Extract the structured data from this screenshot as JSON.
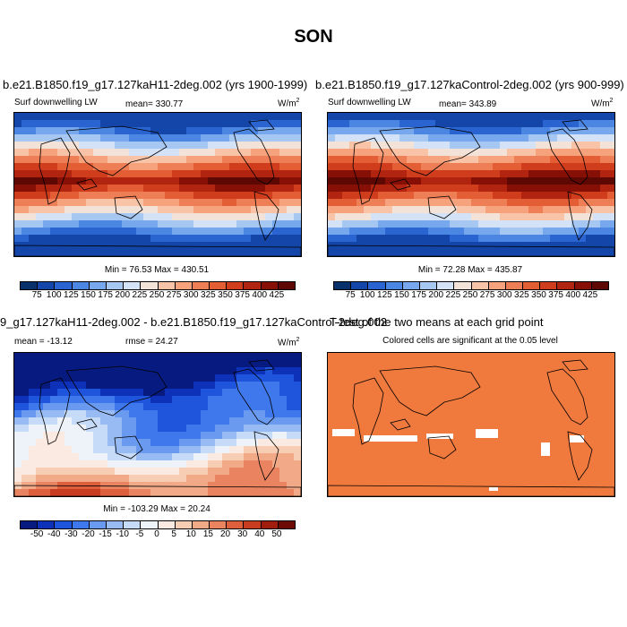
{
  "main_title": "SON",
  "panels": {
    "p1": {
      "title": "b.e21.B1850.f19_g17.127kaH11-2deg.002 (yrs 1900-1999)",
      "left_label": "Surf downwelling LW",
      "center_label": "mean= 330.77",
      "units": "W/m",
      "units_sup": "2",
      "minmax": "Min =  76.53 Max = 430.51",
      "ticks": [
        "75",
        "100",
        "125",
        "150",
        "175",
        "200",
        "225",
        "250",
        "275",
        "300",
        "325",
        "350",
        "375",
        "400",
        "425"
      ]
    },
    "p2": {
      "title": "b.e21.B1850.f19_g17.127kaControl-2deg.002 (yrs 900-999)",
      "left_label": "Surf downwelling LW",
      "center_label": "mean= 343.89",
      "units": "W/m",
      "units_sup": "2",
      "minmax": "Min =  72.28 Max = 435.87",
      "ticks": [
        "75",
        "100",
        "125",
        "150",
        "175",
        "200",
        "225",
        "250",
        "275",
        "300",
        "325",
        "350",
        "375",
        "400",
        "425"
      ]
    },
    "p3": {
      "title": "9_g17.127kaH11-2deg.002 - b.e21.B1850.f19_g17.127kaControl-2deg.002",
      "left_label": "mean = -13.12",
      "center_label": "rmse =  24.27",
      "units": "W/m",
      "units_sup": "2",
      "minmax": "Min = -103.29 Max =  20.24",
      "ticks": [
        "-50",
        "-40",
        "-30",
        "-20",
        "-15",
        "-10",
        "-5",
        "0",
        "5",
        "10",
        "15",
        "20",
        "30",
        "40",
        "50"
      ]
    },
    "p4": {
      "title": "T-test of the two means at each grid point",
      "subtitle": "Colored cells are significant at the 0.05 level"
    }
  },
  "colors": {
    "abs_scale": [
      "#08306b",
      "#1346a8",
      "#2a64d0",
      "#4a86e2",
      "#77a8ee",
      "#a7c7f3",
      "#d3e2f7",
      "#f3e2d8",
      "#f8c3a6",
      "#f5a27d",
      "#ee7e56",
      "#e35d35",
      "#cf3d1d",
      "#b1240f",
      "#861006",
      "#5e0803"
    ],
    "diff_scale": [
      "#071a80",
      "#0d31b8",
      "#1f55dd",
      "#3f78ec",
      "#6a9af0",
      "#98bbf3",
      "#c6dbf7",
      "#eef3fa",
      "#faeae1",
      "#f7cdb3",
      "#f2a987",
      "#ea8460",
      "#dd5f3c",
      "#c83d22",
      "#a11e0e",
      "#6e0a04"
    ],
    "significant": "#f07a3e"
  }
}
